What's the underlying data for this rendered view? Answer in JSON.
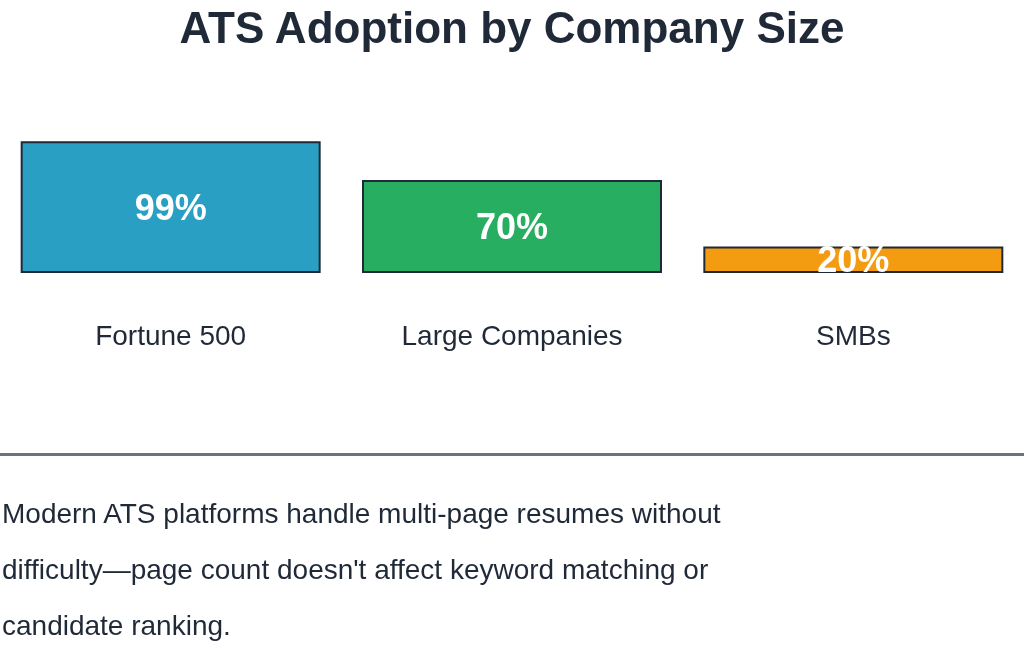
{
  "chart_data": {
    "type": "bar",
    "title": "ATS Adoption by Company Size",
    "categories": [
      "Fortune 500",
      "Large Companies",
      "SMBs"
    ],
    "values": [
      99,
      70,
      20
    ],
    "colors": [
      "#2a9fc4",
      "#27ae60",
      "#f39c12"
    ],
    "value_labels": [
      "99%",
      "70%",
      "20%"
    ],
    "annotations": [
      "Modern ATS platforms handle multi-page resumes without difficulty—page count doesn't affect keyword matching or candidate ranking."
    ]
  }
}
